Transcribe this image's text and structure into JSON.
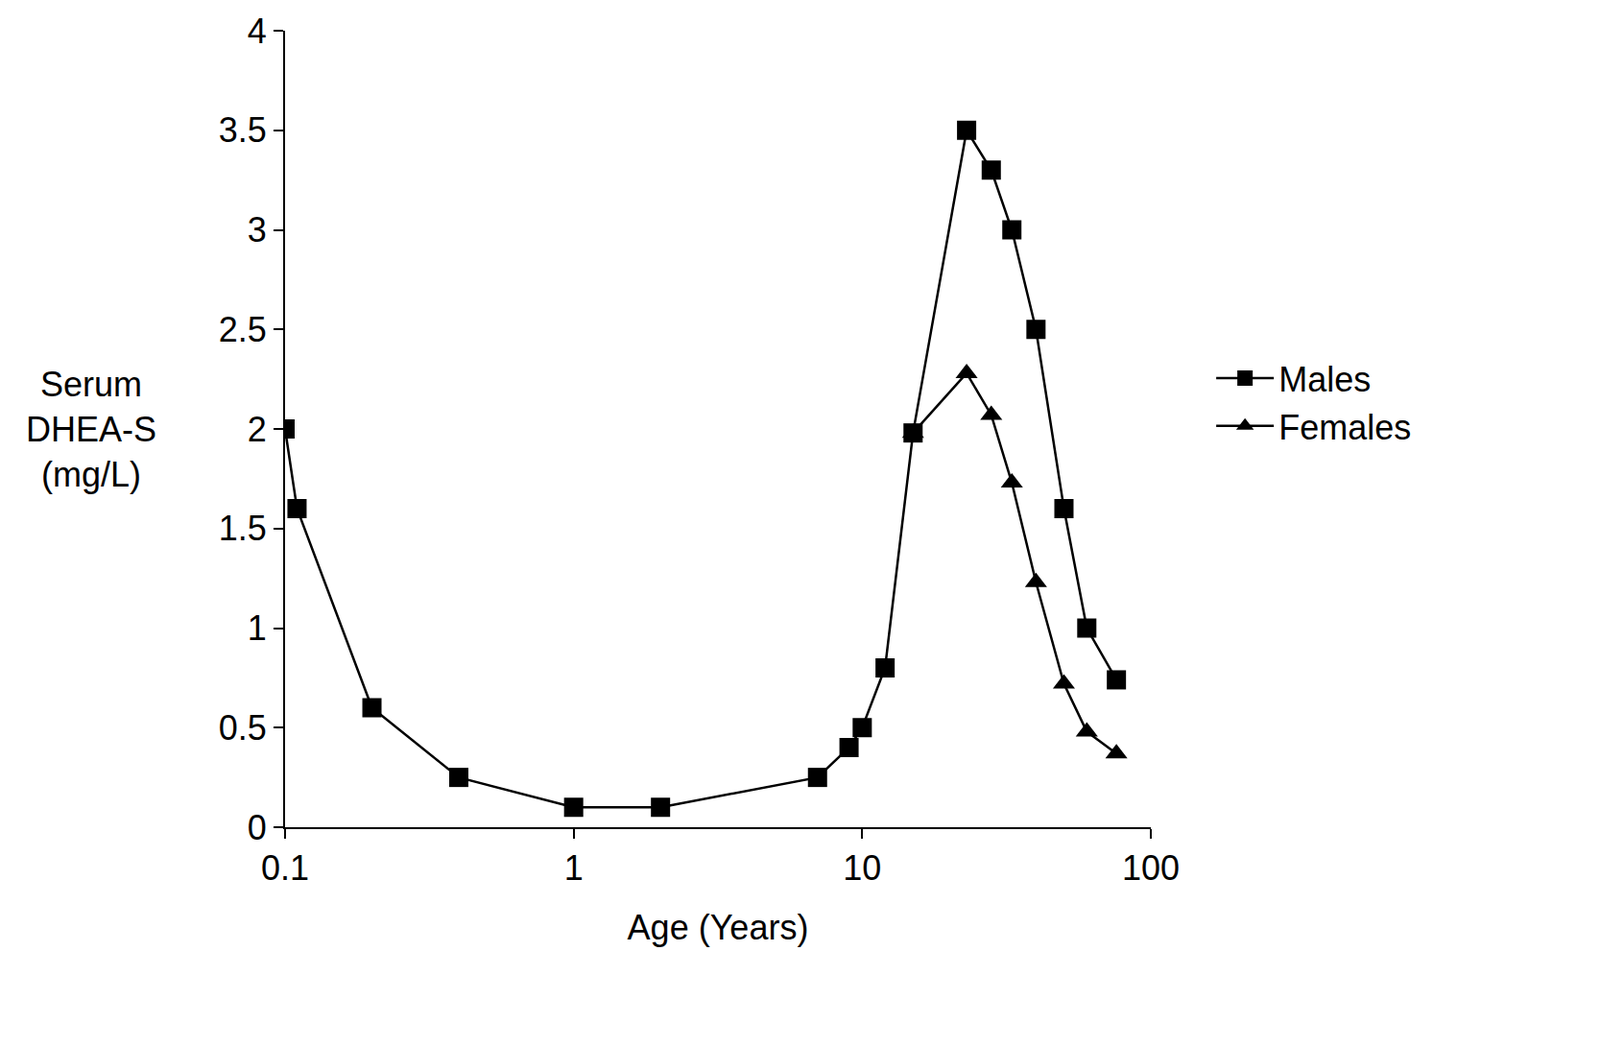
{
  "chart_data": {
    "type": "line",
    "x_label": "Age (Years)",
    "y_label": "Serum DHEA-S (mg/L)",
    "log": "x",
    "grid": false,
    "legend": "right",
    "xlim": [
      0.1,
      100
    ],
    "xticks": [
      0.1,
      1,
      10,
      100
    ],
    "ylim": [
      0,
      4
    ],
    "yticks": [
      0,
      0.5,
      1,
      1.5,
      2,
      2.5,
      3,
      3.5,
      4
    ],
    "series": [
      {
        "name": "Females",
        "color": "#000000",
        "marker": "triangle",
        "x": [
          15,
          23,
          28,
          33,
          40,
          50,
          60,
          76
        ],
        "values": [
          1.98,
          2.28,
          2.07,
          1.73,
          1.23,
          0.72,
          0.48,
          0.37
        ]
      },
      {
        "name": "Males",
        "color": "#000000",
        "marker": "square",
        "x": [
          0.1,
          0.11,
          0.2,
          0.4,
          1,
          2,
          7,
          9,
          10,
          12,
          15,
          23,
          28,
          33,
          40,
          50,
          60,
          76
        ],
        "values": [
          2.0,
          1.6,
          0.6,
          0.25,
          0.1,
          0.1,
          0.25,
          0.4,
          0.5,
          0.8,
          1.98,
          3.5,
          3.3,
          3.0,
          2.5,
          1.6,
          1.0,
          0.74
        ]
      }
    ]
  }
}
